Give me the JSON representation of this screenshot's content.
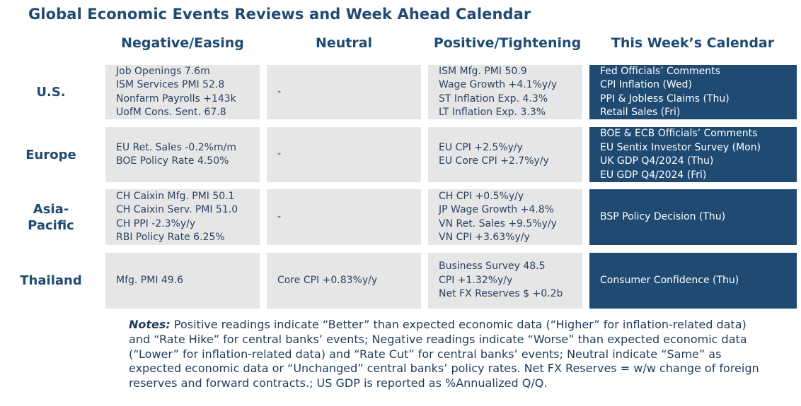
{
  "title": "Global Economic Events Reviews and Week Ahead Calendar",
  "columns": [
    "Negative/Easing",
    "Neutral",
    "Positive/Tightening",
    "This Week’s Calendar"
  ],
  "rows": [
    {
      "label": "U.S.",
      "negative": [
        "Job Openings 7.6m",
        "ISM Services PMI 52.8",
        "Nonfarm Payrolls +143k",
        "UofM Cons. Sent. 67.8"
      ],
      "neutral": [
        "-"
      ],
      "positive": [
        "ISM Mfg. PMI 50.9",
        "Wage Growth +4.1%y/y",
        "ST Inflation Exp. 4.3%",
        "LT Inflation Exp. 3.3%"
      ],
      "calendar": [
        "Fed Officials’ Comments",
        "CPI Inflation (Wed)",
        "PPI & Jobless Claims (Thu)",
        "Retail Sales (Fri)"
      ]
    },
    {
      "label": "Europe",
      "negative": [
        "EU Ret. Sales -0.2%m/m",
        "BOE Policy Rate 4.50%"
      ],
      "neutral": [
        "-"
      ],
      "positive": [
        "EU CPI +2.5%y/y",
        "EU Core CPI +2.7%y/y"
      ],
      "calendar": [
        "BOE & ECB Officials’ Comments",
        "EU Sentix Investor Survey (Mon)",
        "UK GDP Q4/2024 (Thu)",
        "EU GDP Q4/2024 (Fri)"
      ]
    },
    {
      "label": "Asia-Pacific",
      "label_lines": [
        "Asia-",
        "Pacific"
      ],
      "negative": [
        "CH Caixin Mfg. PMI 50.1",
        "CH Caixin Serv. PMI 51.0",
        "CH PPI -2.3%y/y",
        "RBI Policy Rate 6.25%"
      ],
      "neutral": [
        "-"
      ],
      "positive": [
        "CH CPI +0.5%y/y",
        "JP Wage Growth +4.8%",
        "VN Ret. Sales +9.5%y/y",
        "VN CPI +3.63%y/y"
      ],
      "calendar": [
        "BSP Policy Decision (Thu)"
      ]
    },
    {
      "label": "Thailand",
      "negative": [
        "Mfg. PMI 49.6"
      ],
      "neutral": [
        "Core CPI +0.83%y/y"
      ],
      "positive": [
        "Business Survey 48.5",
        "CPI +1.32%y/y",
        "Net FX Reserves $ +0.2b"
      ],
      "calendar": [
        "Consumer Confidence (Thu)"
      ]
    }
  ],
  "notes": {
    "label": "Notes:",
    "text": " Positive readings indicate “Better” than expected economic data (“Higher” for inflation-related data) and “Rate Hike” for central banks’ events; Negative readings indicate “Worse” than expected economic data (“Lower” for inflation-related data) and “Rate Cut” for central banks’ events; Neutral indicate “Same” as expected economic data or “Unchanged” central banks’ policy rates. Net FX Reserves = w/w change of foreign reserves and forward contracts.; US GDP is reported as %Annualized Q/Q."
  },
  "colors": {
    "accent": "#1f4a72",
    "cell_gray": "#e6e6e6",
    "text": "#2a4262"
  }
}
